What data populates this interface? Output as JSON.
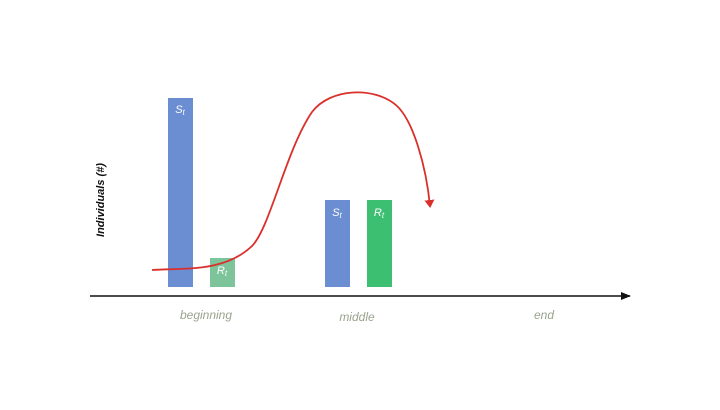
{
  "y_axis_label": "Individuals (#)",
  "stages": [
    "beginning",
    "middle",
    "end"
  ],
  "bars": [
    {
      "label_main": "S",
      "label_sub": "t",
      "stage": "beginning",
      "color": "#6b8dd1"
    },
    {
      "label_main": "R",
      "label_sub": "t",
      "stage": "beginning",
      "color": "#7dc49a"
    },
    {
      "label_main": "S",
      "label_sub": "t",
      "stage": "middle",
      "color": "#6b8dd1"
    },
    {
      "label_main": "R",
      "label_sub": "t",
      "stage": "middle",
      "color": "#3dbf72"
    }
  ],
  "colors": {
    "axis": "#111111",
    "curve": "#d9302c",
    "stage_label": "#9aa38e",
    "bar_label": "#ffffff"
  }
}
